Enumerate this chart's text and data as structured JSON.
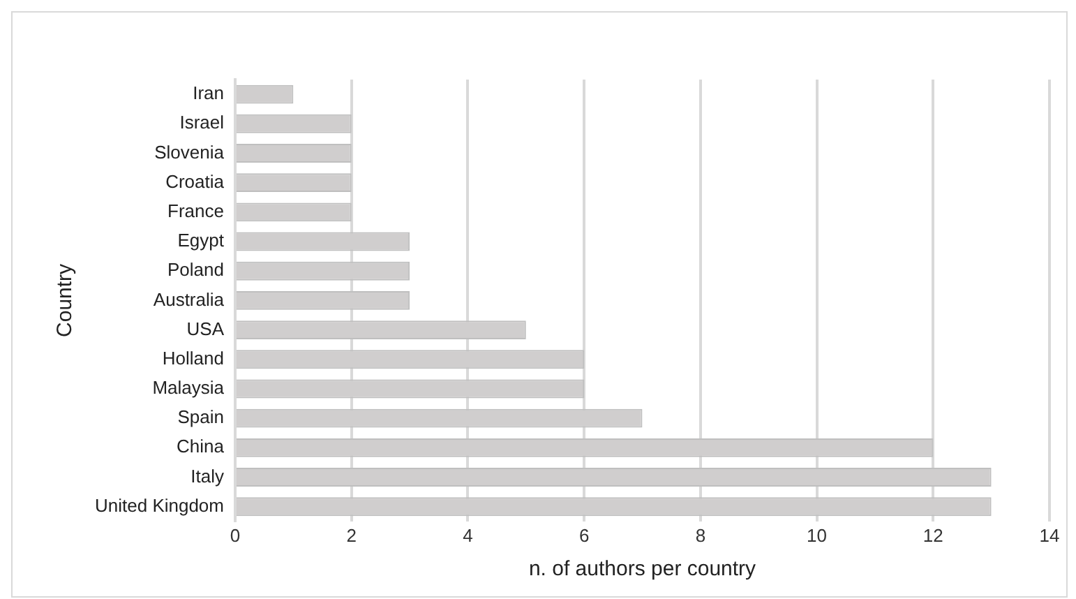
{
  "chart_data": {
    "type": "bar",
    "orientation": "horizontal",
    "xlabel": "n. of authors per country",
    "ylabel": "Country",
    "categories": [
      "Iran",
      "Israel",
      "Slovenia",
      "Croatia",
      "France",
      "Egypt",
      "Poland",
      "Australia",
      "USA",
      "Holland",
      "Malaysia",
      "Spain",
      "China",
      "Italy",
      "United Kingdom"
    ],
    "values": [
      1,
      2,
      2,
      2,
      2,
      3,
      3,
      3,
      5,
      6,
      6,
      7,
      12,
      13,
      13
    ],
    "color": "#d0cece",
    "xlim": [
      0,
      14
    ],
    "xticks": [
      0,
      2,
      4,
      6,
      8,
      10,
      12,
      14
    ],
    "grid": "x",
    "legend": false
  }
}
